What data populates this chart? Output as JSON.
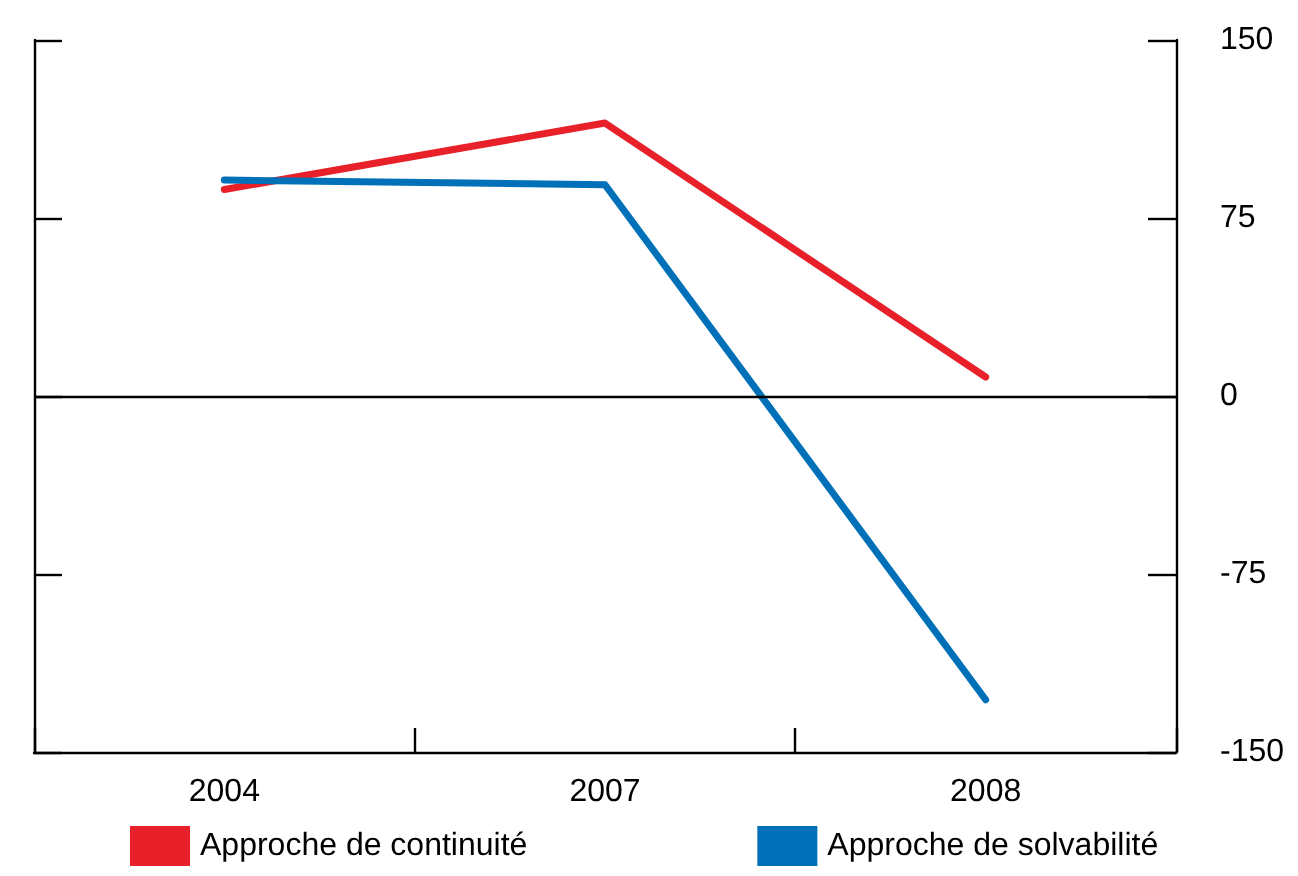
{
  "chart_data": {
    "type": "line",
    "categories": [
      "2004",
      "2007",
      "2008"
    ],
    "series": [
      {
        "name": "Approche de continuité",
        "color": "#e8202a",
        "values": [
          87,
          115,
          8
        ]
      },
      {
        "name": "Approche de solvabilité",
        "color": "#0070b8",
        "values": [
          91,
          89,
          -128
        ]
      }
    ],
    "ylim": [
      -150,
      150
    ],
    "yticks": [
      -150,
      -75,
      0,
      75,
      150
    ],
    "ref_lines": [
      {
        "axis": "y",
        "value": 0,
        "color": "#000000"
      }
    ],
    "grid": false,
    "legend": "bottom left",
    "marker": "none",
    "line_style": "solid"
  }
}
